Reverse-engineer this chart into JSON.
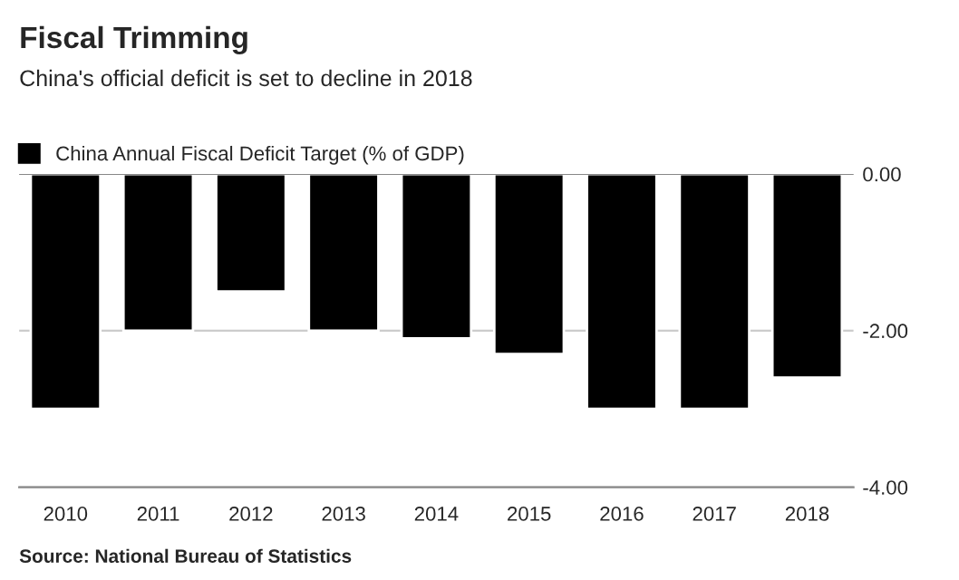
{
  "chart_data": {
    "type": "bar",
    "title": "Fiscal Trimming",
    "subtitle": "China's official deficit is set to decline in 2018",
    "categories": [
      "2010",
      "2011",
      "2012",
      "2013",
      "2014",
      "2015",
      "2016",
      "2017",
      "2018"
    ],
    "series": [
      {
        "name": "China Annual Fiscal Deficit Target (% of GDP)",
        "color": "#000000",
        "values": [
          -3.0,
          -2.0,
          -1.5,
          -2.0,
          -2.1,
          -2.3,
          -3.0,
          -3.0,
          -2.6
        ]
      }
    ],
    "ylim": [
      -4,
      0
    ],
    "yticks": [
      {
        "value": 0,
        "label": "0.00"
      },
      {
        "value": -2,
        "label": "-2.00"
      },
      {
        "value": -4,
        "label": "-4.00"
      }
    ],
    "grid": "y",
    "legend": "top left",
    "annotations": [
      "Source: National Bureau of Statistics"
    ]
  }
}
